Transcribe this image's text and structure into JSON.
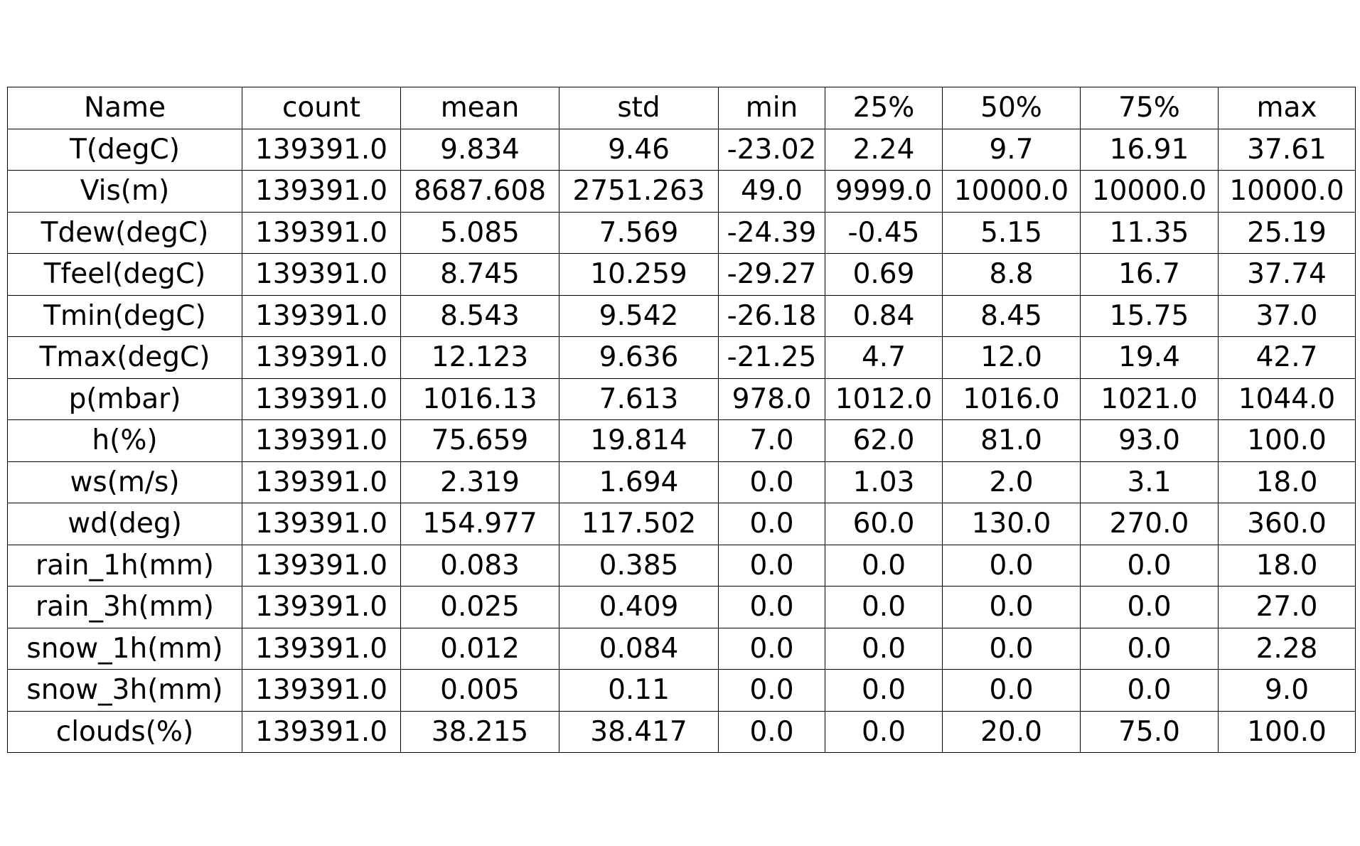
{
  "chart_data": {
    "type": "table",
    "columns": [
      "Name",
      "count",
      "mean",
      "std",
      "min",
      "25%",
      "50%",
      "75%",
      "max"
    ],
    "rows": [
      [
        "T(degC)",
        "139391.0",
        "9.834",
        "9.46",
        "-23.02",
        "2.24",
        "9.7",
        "16.91",
        "37.61"
      ],
      [
        "Vis(m)",
        "139391.0",
        "8687.608",
        "2751.263",
        "49.0",
        "9999.0",
        "10000.0",
        "10000.0",
        "10000.0"
      ],
      [
        "Tdew(degC)",
        "139391.0",
        "5.085",
        "7.569",
        "-24.39",
        "-0.45",
        "5.15",
        "11.35",
        "25.19"
      ],
      [
        "Tfeel(degC)",
        "139391.0",
        "8.745",
        "10.259",
        "-29.27",
        "0.69",
        "8.8",
        "16.7",
        "37.74"
      ],
      [
        "Tmin(degC)",
        "139391.0",
        "8.543",
        "9.542",
        "-26.18",
        "0.84",
        "8.45",
        "15.75",
        "37.0"
      ],
      [
        "Tmax(degC)",
        "139391.0",
        "12.123",
        "9.636",
        "-21.25",
        "4.7",
        "12.0",
        "19.4",
        "42.7"
      ],
      [
        "p(mbar)",
        "139391.0",
        "1016.13",
        "7.613",
        "978.0",
        "1012.0",
        "1016.0",
        "1021.0",
        "1044.0"
      ],
      [
        "h(%)",
        "139391.0",
        "75.659",
        "19.814",
        "7.0",
        "62.0",
        "81.0",
        "93.0",
        "100.0"
      ],
      [
        "ws(m/s)",
        "139391.0",
        "2.319",
        "1.694",
        "0.0",
        "1.03",
        "2.0",
        "3.1",
        "18.0"
      ],
      [
        "wd(deg)",
        "139391.0",
        "154.977",
        "117.502",
        "0.0",
        "60.0",
        "130.0",
        "270.0",
        "360.0"
      ],
      [
        "rain_1h(mm)",
        "139391.0",
        "0.083",
        "0.385",
        "0.0",
        "0.0",
        "0.0",
        "0.0",
        "18.0"
      ],
      [
        "rain_3h(mm)",
        "139391.0",
        "0.025",
        "0.409",
        "0.0",
        "0.0",
        "0.0",
        "0.0",
        "27.0"
      ],
      [
        "snow_1h(mm)",
        "139391.0",
        "0.012",
        "0.084",
        "0.0",
        "0.0",
        "0.0",
        "0.0",
        "2.28"
      ],
      [
        "snow_3h(mm)",
        "139391.0",
        "0.005",
        "0.11",
        "0.0",
        "0.0",
        "0.0",
        "0.0",
        "9.0"
      ],
      [
        "clouds(%)",
        "139391.0",
        "38.215",
        "38.417",
        "0.0",
        "0.0",
        "20.0",
        "75.0",
        "100.0"
      ]
    ],
    "grid": true
  }
}
